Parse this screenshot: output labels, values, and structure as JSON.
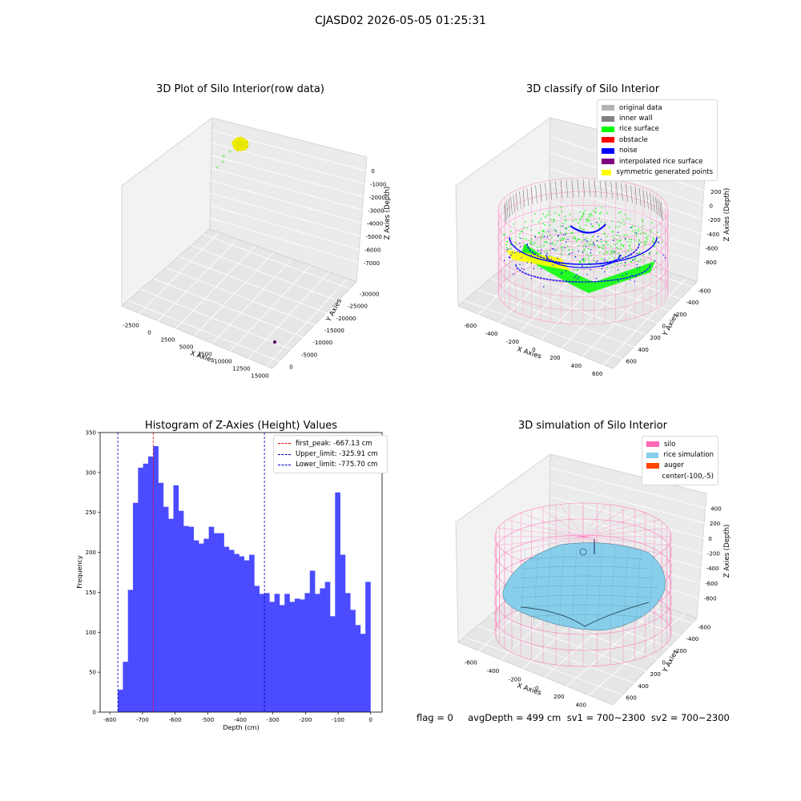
{
  "figure": {
    "suptitle": "CJASD02 2026-05-05 01:25:31",
    "stats_line": "flag = 0     avgDepth = 499 cm  sv1 = 700~2300  sv2 = 700~2300"
  },
  "chart_data": [
    {
      "type": "scatter",
      "title": "3D Plot of Silo Interior(row data)",
      "xlabel": "X Axies",
      "ylabel": "Y Axies",
      "zlabel": "Z Axies (Depth)",
      "x_ticks": [
        "-2500",
        "0",
        "2500",
        "5000",
        "7500",
        "10000",
        "12500",
        "15000"
      ],
      "y_ticks": [
        "0",
        "-5000",
        "-10000",
        "-15000",
        "-20000",
        "-25000",
        "-30000"
      ],
      "z_ticks": [
        "0",
        "-1000",
        "-2000",
        "-3000",
        "-4000",
        "-5000",
        "-6000",
        "-7000"
      ],
      "colors": {
        "main_cluster": "#f0f000",
        "trail": "#a8e6a0",
        "outlier": "#4b0055"
      }
    },
    {
      "type": "scatter",
      "title": "3D classify of Silo Interior",
      "xlabel": "X Axies",
      "ylabel": "Y Axies",
      "zlabel": "Z Axies (Depth)",
      "x_ticks": [
        "-600",
        "-400",
        "-200",
        "0",
        "200",
        "400",
        "600"
      ],
      "y_ticks": [
        "600",
        "400",
        "200",
        "0",
        "-200",
        "-400",
        "-600"
      ],
      "z_ticks": [
        "200",
        "0",
        "-200",
        "-400",
        "-600",
        "-800"
      ],
      "z_label_partial": "400",
      "legend": [
        {
          "label": "original data",
          "color": "#b3b3b3"
        },
        {
          "label": "inner wall",
          "color": "#808080"
        },
        {
          "label": "rice surface",
          "color": "#00ff00"
        },
        {
          "label": "obstacle",
          "color": "#ff0000"
        },
        {
          "label": "noise",
          "color": "#0000ff"
        },
        {
          "label": "interpolated rice surface",
          "color": "#800080"
        },
        {
          "label": "symmetric generated points",
          "color": "#ffff00"
        }
      ]
    },
    {
      "type": "bar",
      "title": "Histogram of Z-Axies (Height) Values",
      "xlabel": "Depth (cm)",
      "ylabel": "Frequency",
      "xlim": [
        -830,
        35
      ],
      "ylim": [
        0,
        350
      ],
      "x_ticks": [
        -800,
        -700,
        -600,
        -500,
        -400,
        -300,
        -200,
        -100,
        0
      ],
      "y_ticks": [
        0,
        50,
        100,
        150,
        200,
        250,
        300,
        350
      ],
      "bin_start": -775.7,
      "bin_width": 15.5,
      "values": [
        28,
        63,
        153,
        262,
        306,
        311,
        320,
        333,
        287,
        257,
        242,
        284,
        252,
        233,
        232,
        215,
        211,
        217,
        232,
        224,
        224,
        207,
        203,
        198,
        195,
        190,
        197,
        158,
        148,
        149,
        138,
        148,
        134,
        148,
        138,
        142,
        141,
        149,
        177,
        148,
        155,
        163,
        120,
        275,
        197,
        149,
        128,
        109,
        98,
        163
      ],
      "bar_color": "#4b4bff",
      "vlines": [
        {
          "x": -667.13,
          "color": "#ff0000",
          "label": "first_peak: -667.13 cm"
        },
        {
          "x": -325.91,
          "color": "#0000cc",
          "label": "Upper_limit: -325.91 cm"
        },
        {
          "x": -775.7,
          "color": "#0000cc",
          "label": "Lower_limit: -775.70 cm"
        }
      ]
    },
    {
      "type": "area",
      "title": "3D simulation of Silo Interior",
      "xlabel": "X Axies",
      "ylabel": "Y Axies",
      "zlabel": "Z Axies (Depth)",
      "x_ticks": [
        "-600",
        "-400",
        "-200",
        "0",
        "200",
        "400"
      ],
      "y_ticks": [
        "600",
        "400",
        "200",
        "0",
        "-200",
        "-400",
        "-600"
      ],
      "z_ticks": [
        "400",
        "200",
        "0",
        "-200",
        "-400",
        "-600",
        "-800"
      ],
      "legend": [
        {
          "label": "silo",
          "color": "#ff69b4"
        },
        {
          "label": "rice simulation",
          "color": "#87ceeb"
        },
        {
          "label": "auger",
          "color": "#ff4500"
        },
        {
          "label": "center(-100,-5)",
          "color": ""
        }
      ]
    }
  ]
}
